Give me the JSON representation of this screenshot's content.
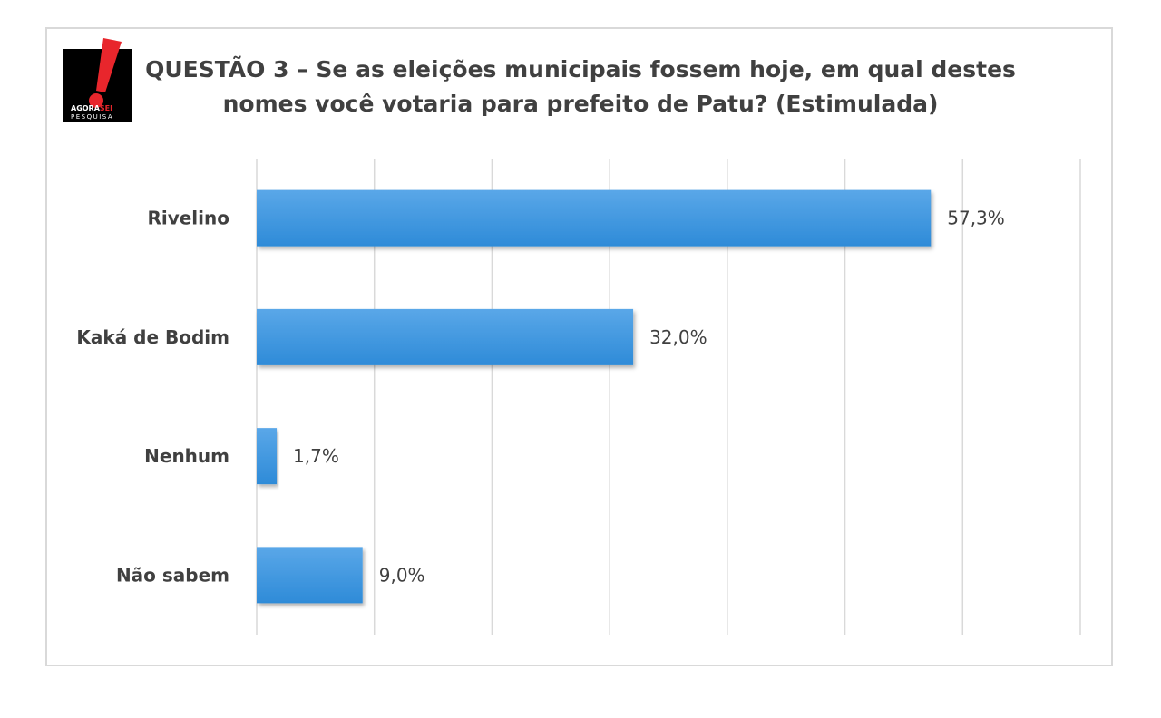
{
  "logo": {
    "line1_a": "AGORA",
    "line1_b": "SEI",
    "line2": "PESQUISA",
    "colors": {
      "black": "#000000",
      "red": "#e8262c",
      "white": "#ffffff"
    }
  },
  "chart_data": {
    "type": "bar",
    "orientation": "horizontal",
    "title": "QUESTÃO 3 – Se as eleições municipais fossem hoje, em qual destes nomes você votaria para prefeito de Patu? (Estimulada)",
    "title_lines": [
      "QUESTÃO 3 – Se as eleições municipais fossem hoje, em qual destes",
      "nomes você votaria para prefeito de Patu? (Estimulada)"
    ],
    "categories": [
      "Rivelino",
      "Kaká de Bodim",
      "Nenhum",
      "Não sabem"
    ],
    "values": [
      57.3,
      32.0,
      1.7,
      9.0
    ],
    "labels": [
      "57,3%",
      "32,0%",
      "1,7%",
      "9,0%"
    ],
    "xlim": [
      0,
      70
    ],
    "grid": true,
    "legend": "none",
    "bar_color": "#2e8bd8",
    "grid_color": "#d9d9d9"
  }
}
